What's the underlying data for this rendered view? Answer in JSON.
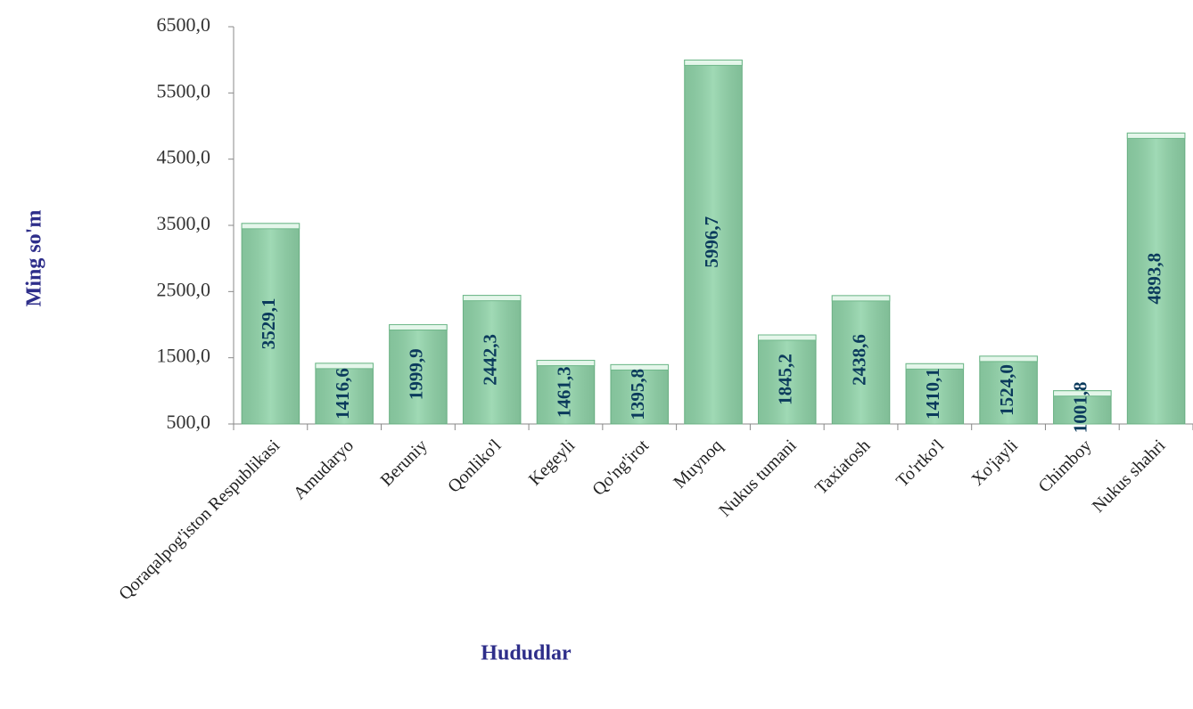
{
  "chart_data": {
    "type": "bar",
    "ylabel": "Ming so'm",
    "xlabel": "Hududlar",
    "categories": [
      "Qoraqalpog'iston Respublikasi",
      "Amudaryo",
      "Beruniy",
      "Qonliko'l",
      "Kegeyli",
      "Qo'ng'irot",
      "Muynoq",
      "Nukus tumani",
      "Taxiatosh",
      "To'rtko'l",
      "Xo'jayli",
      "Chimboy",
      "Nukus shahri"
    ],
    "values": [
      3529.1,
      1416.6,
      1999.9,
      2442.3,
      1461.3,
      1395.8,
      5996.7,
      1845.2,
      2438.6,
      1410.1,
      1524.0,
      1001.8,
      4893.8
    ],
    "value_labels": [
      "3529,1",
      "1416,6",
      "1999,9",
      "2442,3",
      "1461,3",
      "1395,8",
      "5996,7",
      "1845,2",
      "2438,6",
      "1410,1",
      "1524,0",
      "1001,8",
      "4893,8"
    ],
    "color": "#8fd3a8",
    "ylim": [
      500,
      6500
    ],
    "yticks": [
      {
        "value": 500,
        "label": "500,0"
      },
      {
        "value": 1500,
        "label": "1500,0"
      },
      {
        "value": 2500,
        "label": "2500,0"
      },
      {
        "value": 3500,
        "label": "3500,0"
      },
      {
        "value": 4500,
        "label": "4500,0"
      },
      {
        "value": 5500,
        "label": "5500,0"
      },
      {
        "value": 6500,
        "label": "6500,0"
      }
    ],
    "grid": false
  }
}
